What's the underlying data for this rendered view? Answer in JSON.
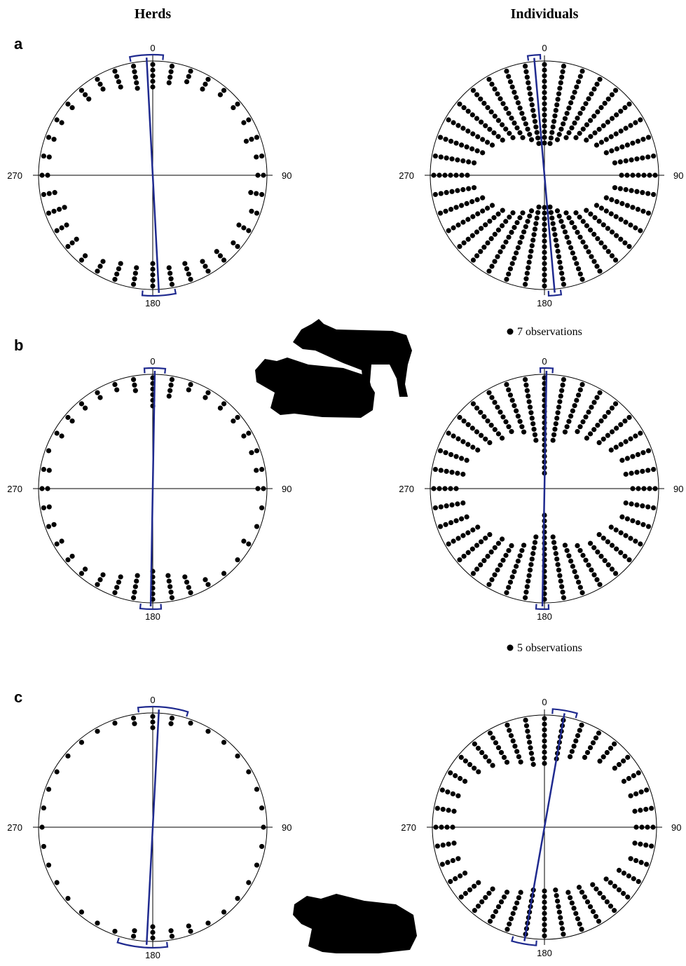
{
  "columns": [
    "Herds",
    "Individuals"
  ],
  "chart_data": [
    {
      "type": "circular",
      "panel_label": "a",
      "angle_ticks": [
        0,
        90,
        180,
        270
      ],
      "x": [
        0,
        10,
        20,
        30,
        40,
        50,
        60,
        70,
        80,
        90,
        100,
        110,
        120,
        130,
        140,
        150,
        160,
        170,
        180,
        190,
        200,
        210,
        220,
        230,
        240,
        250,
        260,
        270,
        280,
        290,
        300,
        310,
        320,
        330,
        340,
        350
      ],
      "values": [
        5,
        4,
        3,
        3,
        2,
        2,
        2,
        3,
        2,
        2,
        3,
        2,
        3,
        2,
        3,
        3,
        4,
        4,
        5,
        4,
        4,
        3,
        2,
        3,
        3,
        4,
        3,
        2,
        2,
        2,
        2,
        2,
        3,
        3,
        4,
        5
      ],
      "mean_axis": 357,
      "ci": [
        349,
        5
      ]
    },
    {
      "type": "circular",
      "angle_ticks": [
        0,
        90,
        180,
        270
      ],
      "x": [
        0,
        10,
        20,
        30,
        40,
        50,
        60,
        70,
        80,
        90,
        100,
        110,
        120,
        130,
        140,
        150,
        160,
        170,
        180,
        190,
        200,
        210,
        220,
        230,
        240,
        250,
        260,
        270,
        280,
        290,
        300,
        310,
        320,
        330,
        340,
        350
      ],
      "values": [
        15,
        15,
        14,
        13,
        12,
        11,
        10,
        9,
        8,
        7,
        8,
        9,
        10,
        11,
        12,
        13,
        14,
        15,
        15,
        15,
        14,
        13,
        12,
        11,
        10,
        9,
        8,
        7,
        8,
        9,
        10,
        11,
        12,
        13,
        14,
        15
      ],
      "mean_axis": 355,
      "ci": [
        352,
        358
      ],
      "dot_legend": "7 observations"
    },
    {
      "type": "circular",
      "panel_label": "b",
      "angle_ticks": [
        0,
        90,
        180,
        270
      ],
      "x": [
        0,
        10,
        20,
        30,
        40,
        50,
        60,
        70,
        80,
        90,
        100,
        110,
        120,
        130,
        140,
        150,
        160,
        170,
        180,
        190,
        200,
        210,
        220,
        230,
        240,
        250,
        260,
        270,
        280,
        290,
        300,
        310,
        320,
        330,
        340,
        350
      ],
      "values": [
        6,
        4,
        2,
        2,
        2,
        2,
        2,
        2,
        2,
        2,
        1,
        1,
        2,
        1,
        1,
        2,
        4,
        5,
        6,
        5,
        4,
        3,
        2,
        2,
        2,
        2,
        2,
        2,
        2,
        1,
        2,
        2,
        2,
        2,
        2,
        3
      ],
      "mean_axis": 1,
      "ci": [
        356,
        6
      ]
    },
    {
      "type": "circular",
      "angle_ticks": [
        0,
        90,
        180,
        270
      ],
      "x": [
        0,
        10,
        20,
        30,
        40,
        50,
        60,
        70,
        80,
        90,
        100,
        110,
        120,
        130,
        140,
        150,
        160,
        170,
        180,
        190,
        200,
        210,
        220,
        230,
        240,
        250,
        260,
        270,
        280,
        290,
        300,
        310,
        320,
        330,
        340,
        350
      ],
      "values": [
        18,
        12,
        10,
        9,
        9,
        8,
        7,
        6,
        6,
        5,
        6,
        6,
        7,
        8,
        8,
        9,
        10,
        12,
        16,
        12,
        10,
        9,
        9,
        8,
        7,
        6,
        6,
        5,
        6,
        6,
        7,
        8,
        9,
        9,
        10,
        12
      ],
      "mean_axis": 1,
      "ci": [
        358,
        4
      ],
      "dot_legend": "5 observations"
    },
    {
      "type": "circular",
      "panel_label": "c",
      "angle_ticks": [
        0,
        90,
        180,
        270
      ],
      "x": [
        0,
        10,
        20,
        30,
        40,
        50,
        60,
        70,
        80,
        90,
        100,
        110,
        120,
        130,
        140,
        150,
        160,
        170,
        180,
        190,
        200,
        210,
        220,
        230,
        240,
        250,
        260,
        270,
        280,
        290,
        300,
        310,
        320,
        330,
        340,
        350
      ],
      "values": [
        3,
        2,
        1,
        1,
        1,
        1,
        1,
        1,
        1,
        1,
        1,
        1,
        1,
        1,
        1,
        1,
        2,
        2,
        3,
        2,
        1,
        1,
        1,
        1,
        1,
        1,
        1,
        1,
        1,
        1,
        1,
        1,
        1,
        1,
        1,
        2
      ],
      "mean_axis": 3,
      "ci": [
        353,
        17
      ]
    },
    {
      "type": "circular",
      "angle_ticks": [
        0,
        90,
        180,
        270
      ],
      "x": [
        0,
        10,
        20,
        30,
        40,
        50,
        60,
        70,
        80,
        90,
        100,
        110,
        120,
        130,
        140,
        150,
        160,
        170,
        180,
        190,
        200,
        210,
        220,
        230,
        240,
        250,
        260,
        270,
        280,
        290,
        300,
        310,
        320,
        330,
        340,
        350
      ],
      "values": [
        9,
        8,
        7,
        6,
        5,
        4,
        4,
        4,
        4,
        4,
        4,
        4,
        5,
        6,
        7,
        8,
        8,
        9,
        9,
        9,
        8,
        7,
        6,
        5,
        4,
        4,
        4,
        4,
        4,
        4,
        4,
        5,
        6,
        7,
        8,
        9
      ],
      "mean_axis": 10,
      "ci": [
        4,
        16
      ]
    }
  ]
}
